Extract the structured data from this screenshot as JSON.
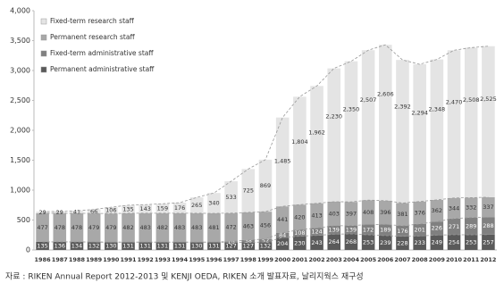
{
  "chart_data": {
    "type": "stacked_bar",
    "categories": [
      "1986",
      "1987",
      "1988",
      "1989",
      "1990",
      "1991",
      "1992",
      "1993",
      "1994",
      "1995",
      "1996",
      "1997",
      "1998",
      "1999",
      "2000",
      "2001",
      "2002",
      "2003",
      "2004",
      "2005",
      "2006",
      "2007",
      "2008",
      "2009",
      "2010",
      "2011",
      "2012"
    ],
    "series": [
      {
        "name": "Permanent administrative staff",
        "color": "#5a5a5a",
        "values": [
          135,
          136,
          134,
          132,
          130,
          131,
          131,
          131,
          131,
          130,
          131,
          127,
          127,
          132,
          204,
          230,
          243,
          264,
          268,
          253,
          239,
          228,
          233,
          249,
          254,
          253,
          257
        ]
      },
      {
        "name": "Fixed-term administrative staff",
        "color": "#808080",
        "values": [
          0,
          0,
          0,
          0,
          0,
          0,
          0,
          0,
          0,
          0,
          0,
          16,
          38,
          52,
          84,
          108,
          124,
          139,
          139,
          172,
          189,
          176,
          201,
          226,
          271,
          289,
          288
        ]
      },
      {
        "name": "Permanent research staff",
        "color": "#a8a8a8",
        "values": [
          477,
          478,
          478,
          479,
          479,
          482,
          483,
          482,
          483,
          483,
          481,
          472,
          463,
          456,
          441,
          420,
          413,
          403,
          397,
          408,
          396,
          381,
          376,
          362,
          344,
          332,
          337
        ]
      },
      {
        "name": "Fixed-term research staff",
        "color": "#e4e4e4",
        "values": [
          29,
          29,
          41,
          66,
          106,
          135,
          143,
          159,
          176,
          265,
          340,
          533,
          725,
          869,
          1485,
          1804,
          1962,
          2230,
          2350,
          2507,
          2606,
          2392,
          2294,
          2348,
          2470,
          2508,
          2525
        ],
        "value_labels": [
          "29",
          "29",
          "41",
          "66",
          "106",
          "135",
          "143",
          "159",
          "176",
          "265",
          "340",
          "533",
          "725",
          "869",
          "1,485",
          "1,804",
          "1,962",
          "2,230",
          "2,350",
          "2,507",
          "2,606",
          "2,392",
          "2,294",
          "2,348",
          "2,470",
          "2,508",
          "2,525"
        ]
      }
    ],
    "ylim": [
      0,
      4000
    ],
    "yticks": [
      0,
      500,
      {
        "value": 1000,
        "label": "1,000"
      },
      {
        "value": 1500,
        "label": "1,500"
      },
      {
        "value": 2000,
        "label": "2,000"
      },
      {
        "value": 2500,
        "label": "2,500"
      },
      {
        "value": 3000,
        "label": "3,000"
      },
      {
        "value": 3500,
        "label": "3,500"
      },
      {
        "value": 4000,
        "label": "4,000"
      }
    ],
    "grid": false,
    "legend": "top-left",
    "source": "자료 : RIKEN Annual Report 2012-2013 및 KENJI OEDA, RIKEN 소개 발표자료, 날리지웍스 재구성"
  }
}
